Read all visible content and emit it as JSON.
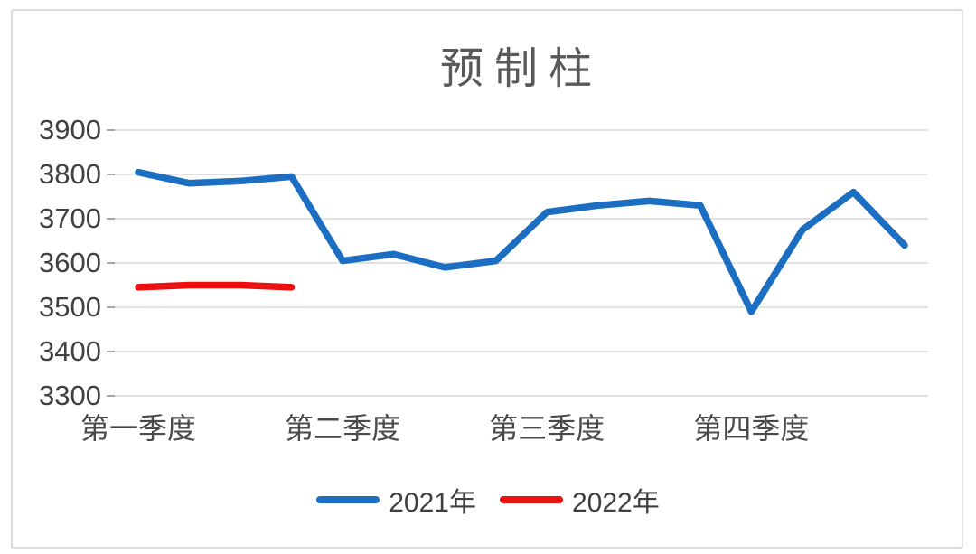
{
  "chart_data": {
    "type": "line",
    "title": "预制柱",
    "categories_count": 16,
    "x_tick_labels": [
      "第一季度",
      "第二季度",
      "第三季度",
      "第四季度"
    ],
    "x_tick_label_indices": [
      0,
      4,
      8,
      12
    ],
    "series": [
      {
        "name": "2021年",
        "color": "#1b6ec2",
        "values": [
          3805,
          3780,
          3785,
          3795,
          3605,
          3620,
          3590,
          3605,
          3715,
          3730,
          3740,
          3730,
          3490,
          3675,
          3760,
          3640
        ]
      },
      {
        "name": "2022年",
        "color": "#ee0f0f",
        "values": [
          3545,
          3550,
          3550,
          3545
        ]
      }
    ],
    "ylim": [
      3300,
      3900
    ],
    "ytick_step": 100,
    "grid": true,
    "legend_position": "bottom",
    "colors": {
      "gridline": "#d9d9d9",
      "tick": "#a6a6a6",
      "axis_text": "#404040",
      "title_text": "#595959",
      "frame_border": "#dadada"
    }
  }
}
